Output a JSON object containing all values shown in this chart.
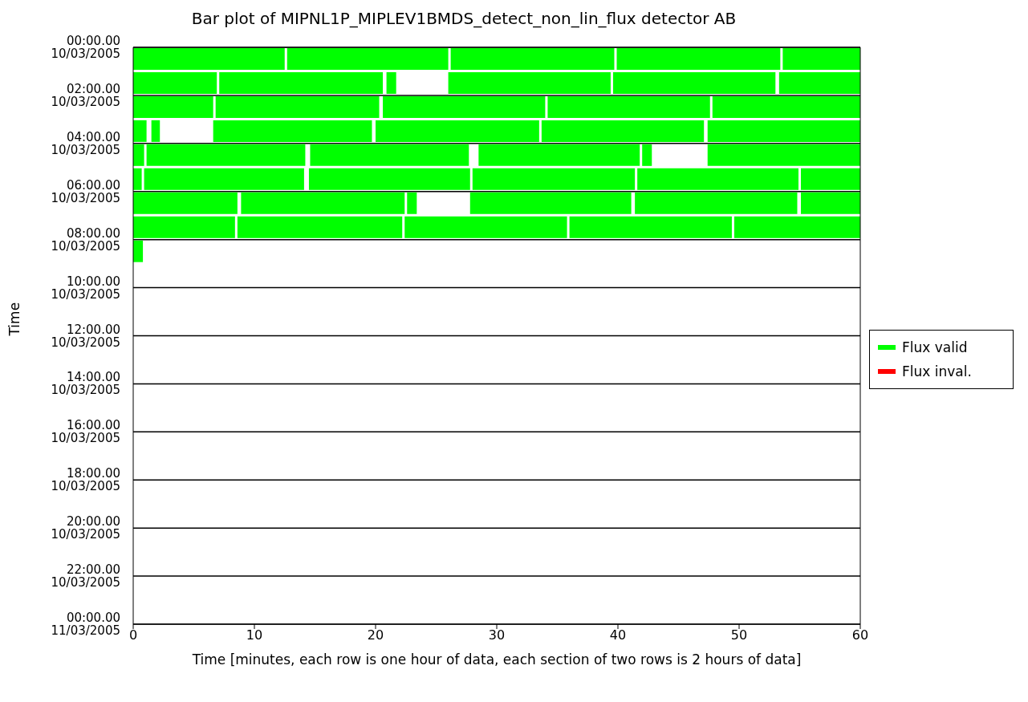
{
  "chart_data": {
    "type": "bar",
    "orientation": "horizontal",
    "title": "Bar plot of MIPNL1P_MIPLEV1BMDS_detect_non_lin_flux detector AB",
    "xlabel": "Time [minutes, each row is one hour of data, each section of two rows is 2 hours of data]",
    "ylabel": "Time",
    "xlim": [
      0,
      60
    ],
    "xticks": [
      0,
      10,
      20,
      30,
      40,
      50,
      60
    ],
    "ylim": [
      "2005-03-11T00:00",
      "2005-03-10T00:00"
    ],
    "yticks": [
      {
        "value": "2005-03-10T00:00",
        "label": "00:00.00\n10/03/2005"
      },
      {
        "value": "2005-03-10T02:00",
        "label": "02:00.00\n10/03/2005"
      },
      {
        "value": "2005-03-10T04:00",
        "label": "04:00.00\n10/03/2005"
      },
      {
        "value": "2005-03-10T06:00",
        "label": "06:00.00\n10/03/2005"
      },
      {
        "value": "2005-03-10T08:00",
        "label": "08:00.00\n10/03/2005"
      },
      {
        "value": "2005-03-10T10:00",
        "label": "10:00.00\n10/03/2005"
      },
      {
        "value": "2005-03-10T12:00",
        "label": "12:00.00\n10/03/2005"
      },
      {
        "value": "2005-03-10T14:00",
        "label": "14:00.00\n10/03/2005"
      },
      {
        "value": "2005-03-10T16:00",
        "label": "16:00.00\n10/03/2005"
      },
      {
        "value": "2005-03-10T18:00",
        "label": "18:00.00\n10/03/2005"
      },
      {
        "value": "2005-03-10T20:00",
        "label": "20:00.00\n10/03/2005"
      },
      {
        "value": "2005-03-10T22:00",
        "label": "22:00.00\n10/03/2005"
      },
      {
        "value": "2005-03-11T00:00",
        "label": "00:00.00\n11/03/2005"
      }
    ],
    "grid": "y",
    "legend": "right",
    "series": [
      {
        "name": "Flux valid",
        "color": "#00ff00",
        "x": [
          "2005-03-10T00:30",
          "2005-03-10T01:30",
          "2005-03-10T02:30",
          "2005-03-10T03:30",
          "2005-03-10T04:30",
          "2005-03-10T05:30",
          "2005-03-10T06:30",
          "2005-03-10T07:30",
          "2005-03-10T08:30"
        ],
        "base": [
          0,
          0,
          0,
          0,
          0,
          0,
          0,
          0,
          0
        ],
        "values": [
          12.5,
          6.9,
          6.6,
          1.1,
          0.9,
          0.7,
          8.6,
          8.4,
          0.8
        ]
      },
      {
        "color": "#00ff00",
        "x": [
          "2005-03-10T00:30",
          "2005-03-10T01:30",
          "2005-03-10T02:30",
          "2005-03-10T03:30",
          "2005-03-10T04:30",
          "2005-03-10T05:30",
          "2005-03-10T06:30",
          "2005-03-10T07:30"
        ],
        "base": [
          12.7,
          7.1,
          6.8,
          1.5,
          1.1,
          0.9,
          8.9,
          8.6
        ],
        "values": [
          13.3,
          13.5,
          13.5,
          0.7,
          13.1,
          13.2,
          13.5,
          13.6
        ]
      },
      {
        "color": "#00ff00",
        "x": [
          "2005-03-10T00:30",
          "2005-03-10T01:30",
          "2005-03-10T02:30",
          "2005-03-10T03:30",
          "2005-03-10T04:30",
          "2005-03-10T05:30",
          "2005-03-10T06:30",
          "2005-03-10T07:30"
        ],
        "base": [
          26.2,
          20.9,
          20.6,
          6.6,
          14.6,
          14.5,
          22.6,
          22.4
        ],
        "values": [
          13.5,
          0.8,
          13.4,
          13.1,
          13.1,
          13.3,
          0.8,
          13.4
        ]
      },
      {
        "color": "#00ff00",
        "x": [
          "2005-03-10T00:30",
          "2005-03-10T01:30",
          "2005-03-10T02:30",
          "2005-03-10T03:30",
          "2005-03-10T04:30",
          "2005-03-10T05:30",
          "2005-03-10T06:30",
          "2005-03-10T07:30"
        ],
        "base": [
          39.9,
          26.0,
          34.2,
          20.0,
          28.5,
          28.0,
          27.8,
          36.0
        ],
        "values": [
          13.5,
          13.4,
          13.4,
          13.5,
          13.3,
          13.4,
          13.3,
          13.4
        ]
      },
      {
        "color": "#00ff00",
        "x": [
          "2005-03-10T00:30",
          "2005-03-10T01:30",
          "2005-03-10T02:30",
          "2005-03-10T03:30",
          "2005-03-10T04:30",
          "2005-03-10T05:30",
          "2005-03-10T06:30",
          "2005-03-10T07:30"
        ],
        "base": [
          53.6,
          39.6,
          47.8,
          33.7,
          42.0,
          41.6,
          41.4,
          49.6
        ],
        "values": [
          6.4,
          13.4,
          12.2,
          13.4,
          0.8,
          13.3,
          13.4,
          10.4
        ]
      },
      {
        "color": "#00ff00",
        "x": [
          "2005-03-10T01:30",
          "2005-03-10T03:30",
          "2005-03-10T04:30",
          "2005-03-10T05:30",
          "2005-03-10T06:30"
        ],
        "base": [
          53.3,
          47.4,
          47.4,
          55.1,
          55.1
        ],
        "values": [
          6.7,
          12.6,
          12.6,
          4.9,
          4.9
        ]
      },
      {
        "name": "Flux inval.",
        "color": "#ff0000"
      }
    ]
  }
}
